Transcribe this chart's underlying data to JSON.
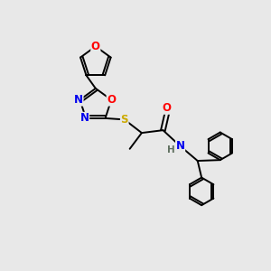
{
  "bg_color": "#e8e8e8",
  "bond_color": "#000000",
  "atom_colors": {
    "O": "#ff0000",
    "N": "#0000ee",
    "S": "#ccaa00",
    "C": "#000000",
    "H": "#607060"
  },
  "lw": 1.4,
  "font_size_atom": 8.5,
  "font_size_h": 7.5
}
